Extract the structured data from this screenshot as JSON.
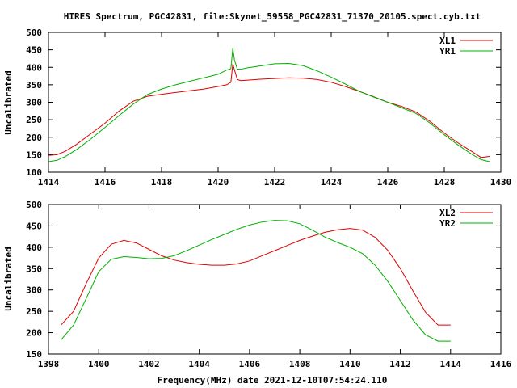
{
  "title": "HIRES Spectrum, PGC42831, file:Skynet_59558_PGC42831_71370_20105.spect.cyb.txt",
  "xlabel": "Frequency(MHz) date 2021-12-10T07:54:24.110",
  "colors": {
    "series1": "#e00000",
    "series2": "#00b000"
  },
  "chart_data": [
    {
      "type": "line",
      "ylabel": "Uncalibrated",
      "xlim": [
        1414,
        1430
      ],
      "ylim": [
        100,
        500
      ],
      "xticks": [
        1414,
        1416,
        1418,
        1420,
        1422,
        1424,
        1426,
        1428,
        1430
      ],
      "yticks": [
        100,
        150,
        200,
        250,
        300,
        350,
        400,
        450,
        500
      ],
      "legend_position": "top-right",
      "grid": false,
      "series": [
        {
          "name": "XL1",
          "x": [
            1414.0,
            1414.3,
            1414.6,
            1415.0,
            1415.5,
            1416.0,
            1416.5,
            1417.0,
            1417.5,
            1418.0,
            1418.5,
            1419.0,
            1419.5,
            1420.0,
            1420.3,
            1420.45,
            1420.52,
            1420.58,
            1420.68,
            1420.8,
            1421.0,
            1421.5,
            1422.0,
            1422.5,
            1423.0,
            1423.5,
            1424.0,
            1424.5,
            1425.0,
            1425.5,
            1426.0,
            1426.5,
            1427.0,
            1427.5,
            1428.0,
            1428.5,
            1429.0,
            1429.3,
            1429.6
          ],
          "y": [
            148,
            150,
            160,
            180,
            210,
            240,
            275,
            303,
            317,
            323,
            328,
            333,
            338,
            345,
            350,
            357,
            410,
            392,
            365,
            362,
            363,
            366,
            368,
            370,
            369,
            365,
            357,
            345,
            331,
            316,
            300,
            288,
            272,
            245,
            212,
            183,
            158,
            142,
            145
          ]
        },
        {
          "name": "YR1",
          "x": [
            1414.0,
            1414.3,
            1414.6,
            1415.0,
            1415.5,
            1416.0,
            1416.5,
            1417.0,
            1417.5,
            1418.0,
            1418.5,
            1419.0,
            1419.5,
            1420.0,
            1420.3,
            1420.45,
            1420.52,
            1420.58,
            1420.68,
            1420.8,
            1421.0,
            1421.5,
            1422.0,
            1422.5,
            1423.0,
            1423.5,
            1424.0,
            1424.5,
            1425.0,
            1425.5,
            1426.0,
            1426.5,
            1427.0,
            1427.5,
            1428.0,
            1428.5,
            1429.0,
            1429.3,
            1429.6
          ],
          "y": [
            130,
            134,
            145,
            165,
            195,
            228,
            262,
            295,
            322,
            338,
            350,
            360,
            370,
            380,
            392,
            396,
            455,
            420,
            395,
            394,
            398,
            404,
            410,
            411,
            405,
            390,
            372,
            352,
            331,
            315,
            300,
            284,
            268,
            240,
            207,
            177,
            150,
            136,
            130
          ]
        }
      ]
    },
    {
      "type": "line",
      "ylabel": "Uncalibrated",
      "xlim": [
        1398,
        1416
      ],
      "ylim": [
        150,
        500
      ],
      "xticks": [
        1398,
        1400,
        1402,
        1404,
        1406,
        1408,
        1410,
        1412,
        1414,
        1416
      ],
      "yticks": [
        150,
        200,
        250,
        300,
        350,
        400,
        450,
        500
      ],
      "legend_position": "top-right",
      "grid": false,
      "series": [
        {
          "name": "XL2",
          "x": [
            1398.5,
            1399.0,
            1399.5,
            1400.0,
            1400.5,
            1401.0,
            1401.5,
            1402.0,
            1402.5,
            1403.0,
            1403.5,
            1404.0,
            1404.5,
            1405.0,
            1405.5,
            1406.0,
            1406.5,
            1407.0,
            1407.5,
            1408.0,
            1408.5,
            1409.0,
            1409.5,
            1410.0,
            1410.5,
            1411.0,
            1411.5,
            1412.0,
            1412.5,
            1413.0,
            1413.5,
            1414.0
          ],
          "y": [
            218,
            250,
            315,
            375,
            407,
            416,
            410,
            395,
            380,
            370,
            364,
            360,
            358,
            358,
            361,
            368,
            380,
            392,
            404,
            416,
            426,
            435,
            441,
            444,
            440,
            423,
            393,
            350,
            298,
            248,
            218,
            218
          ]
        },
        {
          "name": "YR2",
          "x": [
            1398.5,
            1399.0,
            1399.5,
            1400.0,
            1400.5,
            1401.0,
            1401.5,
            1402.0,
            1402.5,
            1403.0,
            1403.5,
            1404.0,
            1404.5,
            1405.0,
            1405.5,
            1406.0,
            1406.5,
            1407.0,
            1407.5,
            1408.0,
            1408.5,
            1409.0,
            1409.5,
            1410.0,
            1410.5,
            1411.0,
            1411.5,
            1412.0,
            1412.5,
            1413.0,
            1413.5,
            1414.0
          ],
          "y": [
            183,
            218,
            280,
            343,
            372,
            378,
            376,
            373,
            374,
            380,
            392,
            405,
            418,
            430,
            442,
            452,
            459,
            463,
            462,
            455,
            440,
            424,
            411,
            400,
            385,
            358,
            320,
            275,
            230,
            195,
            180,
            180
          ]
        }
      ]
    }
  ]
}
